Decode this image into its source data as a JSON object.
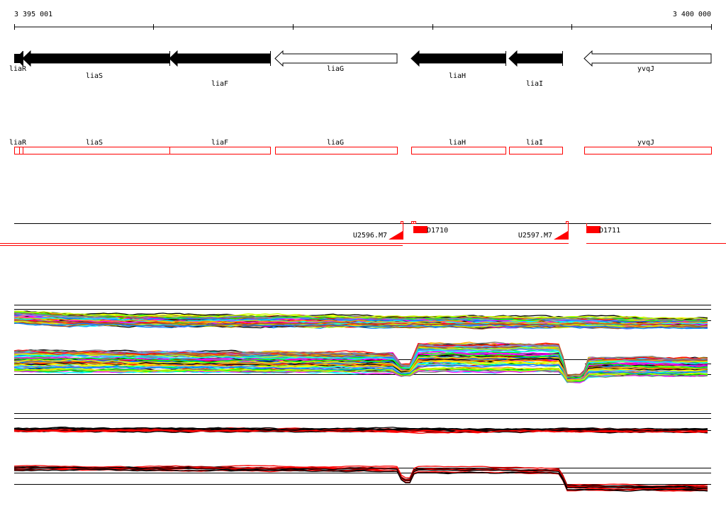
{
  "ruler": {
    "start_label": "3 395 001",
    "end_label": "3 400 000"
  },
  "genes": [
    {
      "name": "liaR",
      "strand": "-",
      "filled": true
    },
    {
      "name": "liaS",
      "strand": "-",
      "filled": true
    },
    {
      "name": "liaF",
      "strand": "-",
      "filled": true
    },
    {
      "name": "liaG",
      "strand": "-",
      "filled": false
    },
    {
      "name": "liaH",
      "strand": "-",
      "filled": true
    },
    {
      "name": "liaI",
      "strand": "-",
      "filled": true
    },
    {
      "name": "yvqJ",
      "strand": "-",
      "filled": false
    }
  ],
  "features": {
    "terminators": [
      "U2596.M7",
      "U2597.M7"
    ],
    "promoters": [
      "D1710",
      "D1711"
    ]
  },
  "colors": {
    "feature": "#ff0000",
    "gene_outline": "#ff0000",
    "profile_palette": [
      "#ff0000",
      "#000000",
      "#ff00ff",
      "#00ffff",
      "#0080ff",
      "#00ff00",
      "#ffa500",
      "#808080",
      "#ccff00",
      "#a0522d",
      "#ffff00",
      "#8080ff"
    ],
    "summary_palette": [
      "#ff0000",
      "#000000"
    ]
  }
}
